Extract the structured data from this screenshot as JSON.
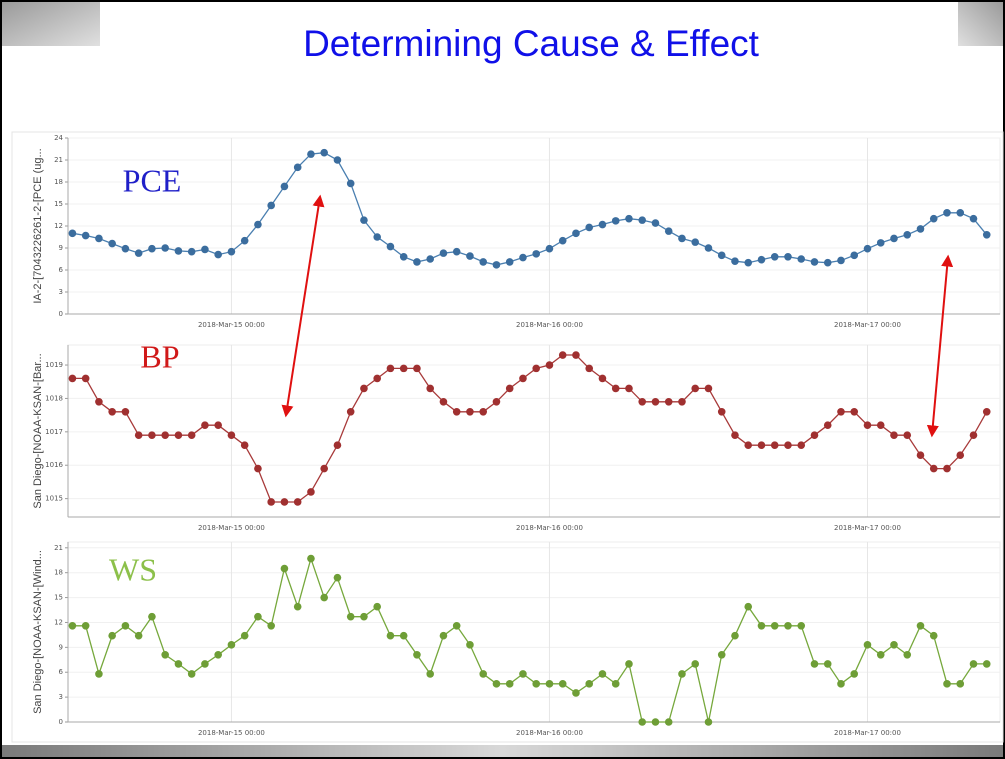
{
  "title": "Determining Cause & Effect",
  "chart_data": [
    {
      "type": "line",
      "annotation": "PCE",
      "annotation_color": "#1f1fc8",
      "y_label": "IA-2-[7043226261-2-[PCE (ug...",
      "color": "#4a7fb0",
      "marker_color": "#3b6d9e",
      "x": [
        "2018-03-14 12:00",
        "2018-03-14 13:00",
        "2018-03-14 14:00",
        "2018-03-14 15:00",
        "2018-03-14 16:00",
        "2018-03-14 17:00",
        "2018-03-14 18:00",
        "2018-03-14 19:00",
        "2018-03-14 20:00",
        "2018-03-14 21:00",
        "2018-03-14 22:00",
        "2018-03-14 23:00",
        "2018-03-15 00:00",
        "2018-03-15 01:00",
        "2018-03-15 02:00",
        "2018-03-15 03:00",
        "2018-03-15 04:00",
        "2018-03-15 05:00",
        "2018-03-15 06:00",
        "2018-03-15 07:00",
        "2018-03-15 08:00",
        "2018-03-15 09:00",
        "2018-03-15 10:00",
        "2018-03-15 11:00",
        "2018-03-15 12:00",
        "2018-03-15 13:00",
        "2018-03-15 14:00",
        "2018-03-15 15:00",
        "2018-03-15 16:00",
        "2018-03-15 17:00",
        "2018-03-15 18:00",
        "2018-03-15 19:00",
        "2018-03-15 20:00",
        "2018-03-15 21:00",
        "2018-03-15 22:00",
        "2018-03-15 23:00",
        "2018-03-16 00:00",
        "2018-03-16 01:00",
        "2018-03-16 02:00",
        "2018-03-16 03:00",
        "2018-03-16 04:00",
        "2018-03-16 05:00",
        "2018-03-16 06:00",
        "2018-03-16 07:00",
        "2018-03-16 08:00",
        "2018-03-16 09:00",
        "2018-03-16 10:00",
        "2018-03-16 11:00",
        "2018-03-16 12:00",
        "2018-03-16 13:00",
        "2018-03-16 14:00",
        "2018-03-16 15:00",
        "2018-03-16 16:00",
        "2018-03-16 17:00",
        "2018-03-16 18:00",
        "2018-03-16 19:00",
        "2018-03-16 20:00",
        "2018-03-16 21:00",
        "2018-03-16 22:00",
        "2018-03-16 23:00",
        "2018-03-17 00:00",
        "2018-03-17 01:00",
        "2018-03-17 02:00",
        "2018-03-17 03:00",
        "2018-03-17 04:00",
        "2018-03-17 05:00",
        "2018-03-17 06:00",
        "2018-03-17 07:00",
        "2018-03-17 08:00",
        "2018-03-17 09:00"
      ],
      "values": [
        11.0,
        10.7,
        10.3,
        9.6,
        8.9,
        8.3,
        8.9,
        9.0,
        8.6,
        8.5,
        8.8,
        8.1,
        8.5,
        10.0,
        12.2,
        14.8,
        17.4,
        20,
        21.8,
        22,
        21,
        17.8,
        12.8,
        10.5,
        9.2,
        7.8,
        7.1,
        7.5,
        8.3,
        8.5,
        7.9,
        7.1,
        6.7,
        7.1,
        7.7,
        8.2,
        8.9,
        10,
        11,
        11.8,
        12.2,
        12.7,
        13,
        12.8,
        12.4,
        11.3,
        10.3,
        9.8,
        9,
        8,
        7.2,
        7,
        7.4,
        7.8,
        7.8,
        7.5,
        7.1,
        7,
        7.3,
        8,
        8.9,
        9.7,
        10.3,
        10.8,
        11.6,
        13,
        13.8,
        13.8,
        13,
        10.8
      ],
      "xlim": [
        "2018-03-14 11:40",
        "2018-03-17 10:00"
      ],
      "xticks": [
        {
          "value": "2018-03-15 00:00",
          "label": "2018-Mar-15 00:00"
        },
        {
          "value": "2018-03-16 00:00",
          "label": "2018-Mar-16 00:00"
        },
        {
          "value": "2018-03-17 00:00",
          "label": "2018-Mar-17 00:00"
        }
      ],
      "ylim": [
        0,
        24
      ],
      "yticks": [
        0,
        3,
        6,
        9,
        12,
        15,
        18,
        21,
        24
      ],
      "grid": true
    },
    {
      "type": "line",
      "annotation": "BP",
      "annotation_color": "#d01818",
      "y_label": "San Diego-[NOAA-KSAN-[Bar...",
      "color": "#a83a3a",
      "marker_color": "#a03030",
      "x": [
        "2018-03-14 12:00",
        "2018-03-14 13:00",
        "2018-03-14 14:00",
        "2018-03-14 15:00",
        "2018-03-14 16:00",
        "2018-03-14 17:00",
        "2018-03-14 18:00",
        "2018-03-14 19:00",
        "2018-03-14 20:00",
        "2018-03-14 21:00",
        "2018-03-14 22:00",
        "2018-03-14 23:00",
        "2018-03-15 00:00",
        "2018-03-15 01:00",
        "2018-03-15 02:00",
        "2018-03-15 03:00",
        "2018-03-15 04:00",
        "2018-03-15 05:00",
        "2018-03-15 06:00",
        "2018-03-15 07:00",
        "2018-03-15 08:00",
        "2018-03-15 09:00",
        "2018-03-15 10:00",
        "2018-03-15 11:00",
        "2018-03-15 12:00",
        "2018-03-15 13:00",
        "2018-03-15 14:00",
        "2018-03-15 15:00",
        "2018-03-15 16:00",
        "2018-03-15 17:00",
        "2018-03-15 18:00",
        "2018-03-15 19:00",
        "2018-03-15 20:00",
        "2018-03-15 21:00",
        "2018-03-15 22:00",
        "2018-03-15 23:00",
        "2018-03-16 00:00",
        "2018-03-16 01:00",
        "2018-03-16 02:00",
        "2018-03-16 03:00",
        "2018-03-16 04:00",
        "2018-03-16 05:00",
        "2018-03-16 06:00",
        "2018-03-16 07:00",
        "2018-03-16 08:00",
        "2018-03-16 09:00",
        "2018-03-16 10:00",
        "2018-03-16 11:00",
        "2018-03-16 12:00",
        "2018-03-16 13:00",
        "2018-03-16 14:00",
        "2018-03-16 15:00",
        "2018-03-16 16:00",
        "2018-03-16 17:00",
        "2018-03-16 18:00",
        "2018-03-16 19:00",
        "2018-03-16 20:00",
        "2018-03-16 21:00",
        "2018-03-16 22:00",
        "2018-03-16 23:00",
        "2018-03-17 00:00",
        "2018-03-17 01:00",
        "2018-03-17 02:00",
        "2018-03-17 03:00",
        "2018-03-17 04:00",
        "2018-03-17 05:00",
        "2018-03-17 06:00",
        "2018-03-17 07:00",
        "2018-03-17 08:00",
        "2018-03-17 09:00"
      ],
      "values": [
        1018.6,
        1018.6,
        1017.9,
        1017.6,
        1017.6,
        1016.9,
        1016.9,
        1016.9,
        1016.9,
        1016.9,
        1017.2,
        1017.2,
        1016.9,
        1016.6,
        1015.9,
        1014.9,
        1014.9,
        1014.9,
        1015.2,
        1015.9,
        1016.6,
        1017.6,
        1018.3,
        1018.6,
        1018.9,
        1018.9,
        1018.9,
        1018.3,
        1017.9,
        1017.6,
        1017.6,
        1017.6,
        1017.9,
        1018.3,
        1018.6,
        1018.9,
        1019.0,
        1019.3,
        1019.3,
        1018.9,
        1018.6,
        1018.3,
        1018.3,
        1017.9,
        1017.9,
        1017.9,
        1017.9,
        1018.3,
        1018.3,
        1017.6,
        1016.9,
        1016.6,
        1016.6,
        1016.6,
        1016.6,
        1016.6,
        1016.9,
        1017.2,
        1017.6,
        1017.6,
        1017.2,
        1017.2,
        1016.9,
        1016.9,
        1016.3,
        1015.9,
        1015.9,
        1016.3,
        1016.9,
        1017.6
      ],
      "xlim": [
        "2018-03-14 11:40",
        "2018-03-17 10:00"
      ],
      "xticks": [
        {
          "value": "2018-03-15 00:00",
          "label": "2018-Mar-15 00:00"
        },
        {
          "value": "2018-03-16 00:00",
          "label": "2018-Mar-16 00:00"
        },
        {
          "value": "2018-03-17 00:00",
          "label": "2018-Mar-17 00:00"
        }
      ],
      "ylim": [
        1014.45,
        1019.6
      ],
      "yticks": [
        1015,
        1016,
        1017,
        1018,
        1019
      ],
      "grid": true
    },
    {
      "type": "line",
      "annotation": "WS",
      "annotation_color": "#8cc04a",
      "y_label": "San Diego-[NOAA-KSAN-[Wind...",
      "color": "#76a83c",
      "marker_color": "#6e9e36",
      "x": [
        "2018-03-14 12:00",
        "2018-03-14 13:00",
        "2018-03-14 14:00",
        "2018-03-14 15:00",
        "2018-03-14 16:00",
        "2018-03-14 17:00",
        "2018-03-14 18:00",
        "2018-03-14 19:00",
        "2018-03-14 20:00",
        "2018-03-14 21:00",
        "2018-03-14 22:00",
        "2018-03-14 23:00",
        "2018-03-15 00:00",
        "2018-03-15 01:00",
        "2018-03-15 02:00",
        "2018-03-15 03:00",
        "2018-03-15 04:00",
        "2018-03-15 05:00",
        "2018-03-15 06:00",
        "2018-03-15 07:00",
        "2018-03-15 08:00",
        "2018-03-15 09:00",
        "2018-03-15 10:00",
        "2018-03-15 11:00",
        "2018-03-15 12:00",
        "2018-03-15 13:00",
        "2018-03-15 14:00",
        "2018-03-15 15:00",
        "2018-03-15 16:00",
        "2018-03-15 17:00",
        "2018-03-15 18:00",
        "2018-03-15 19:00",
        "2018-03-15 20:00",
        "2018-03-15 21:00",
        "2018-03-15 22:00",
        "2018-03-15 23:00",
        "2018-03-16 00:00",
        "2018-03-16 01:00",
        "2018-03-16 02:00",
        "2018-03-16 03:00",
        "2018-03-16 04:00",
        "2018-03-16 05:00",
        "2018-03-16 06:00",
        "2018-03-16 07:00",
        "2018-03-16 08:00",
        "2018-03-16 09:00",
        "2018-03-16 10:00",
        "2018-03-16 11:00",
        "2018-03-16 12:00",
        "2018-03-16 13:00",
        "2018-03-16 14:00",
        "2018-03-16 15:00",
        "2018-03-16 16:00",
        "2018-03-16 17:00",
        "2018-03-16 18:00",
        "2018-03-16 19:00",
        "2018-03-16 20:00",
        "2018-03-16 21:00",
        "2018-03-16 22:00",
        "2018-03-16 23:00",
        "2018-03-17 00:00",
        "2018-03-17 01:00",
        "2018-03-17 02:00",
        "2018-03-17 03:00",
        "2018-03-17 04:00",
        "2018-03-17 05:00",
        "2018-03-17 06:00",
        "2018-03-17 07:00",
        "2018-03-17 08:00",
        "2018-03-17 09:00"
      ],
      "values": [
        11.6,
        11.6,
        5.8,
        10.4,
        11.6,
        10.4,
        12.7,
        8.1,
        7,
        5.8,
        7,
        8.1,
        9.3,
        10.4,
        12.7,
        11.6,
        18.5,
        13.9,
        19.7,
        15,
        17.4,
        12.7,
        12.7,
        13.9,
        10.4,
        10.4,
        8.1,
        5.8,
        10.4,
        11.6,
        9.3,
        5.8,
        4.6,
        4.6,
        5.8,
        4.6,
        4.6,
        4.6,
        3.5,
        4.6,
        5.8,
        4.6,
        7,
        0,
        0,
        0,
        5.8,
        7,
        0,
        8.1,
        10.4,
        13.9,
        11.6,
        11.6,
        11.6,
        11.6,
        7,
        7,
        4.6,
        5.8,
        9.3,
        8.1,
        9.3,
        8.1,
        11.6,
        10.4,
        4.6,
        4.6,
        7,
        7
      ],
      "xlim": [
        "2018-03-14 11:40",
        "2018-03-17 10:00"
      ],
      "xticks": [
        {
          "value": "2018-03-15 00:00",
          "label": "2018-Mar-15 00:00"
        },
        {
          "value": "2018-03-16 00:00",
          "label": "2018-Mar-16 00:00"
        },
        {
          "value": "2018-03-17 00:00",
          "label": "2018-Mar-17 00:00"
        }
      ],
      "ylim": [
        0,
        21.7
      ],
      "yticks": [
        0,
        3,
        6,
        9,
        12,
        15,
        18,
        21
      ],
      "grid": true
    }
  ]
}
